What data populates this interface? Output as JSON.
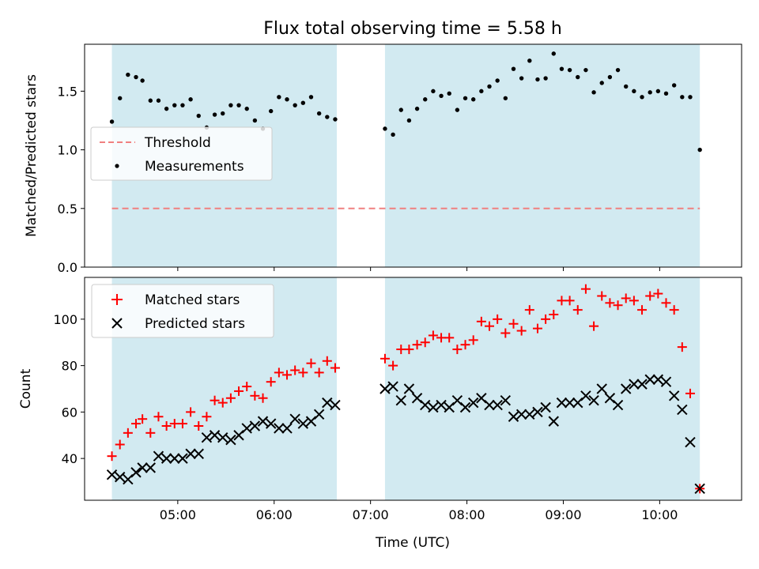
{
  "chart_data": {
    "type": "scatter",
    "title": "Flux total observing time = 5.58 h",
    "xlabel": "Time (UTC)",
    "x_ticks": [
      "05:00",
      "06:00",
      "07:00",
      "08:00",
      "09:00",
      "10:00"
    ],
    "xlim": [
      "04:02",
      "10:51"
    ],
    "shaded_intervals": [
      [
        "04:19",
        "06:39"
      ],
      [
        "07:09",
        "10:25"
      ]
    ],
    "shade_color": "#add8e6",
    "panels": [
      {
        "ylabel": "Matched/Predicted stars",
        "ylim": [
          0,
          1.9
        ],
        "y_ticks": [
          0.0,
          0.5,
          1.0,
          1.5
        ],
        "y_tick_labels": [
          "0.0",
          "0.5",
          "1.0",
          "1.5"
        ],
        "legend_position": "center-left",
        "threshold": {
          "name": "Threshold",
          "y": 0.5,
          "color": "#f08080",
          "style": "dashed"
        },
        "series": [
          {
            "name": "Measurements",
            "marker": "dot",
            "color": "#000000",
            "points": [
              [
                "04:19",
                1.24
              ],
              [
                "04:24",
                1.44
              ],
              [
                "04:29",
                1.64
              ],
              [
                "04:34",
                1.62
              ],
              [
                "04:38",
                1.59
              ],
              [
                "04:43",
                1.42
              ],
              [
                "04:48",
                1.42
              ],
              [
                "04:53",
                1.35
              ],
              [
                "04:58",
                1.38
              ],
              [
                "05:03",
                1.38
              ],
              [
                "05:08",
                1.43
              ],
              [
                "05:13",
                1.29
              ],
              [
                "05:18",
                1.19
              ],
              [
                "05:23",
                1.3
              ],
              [
                "05:28",
                1.31
              ],
              [
                "05:33",
                1.38
              ],
              [
                "05:38",
                1.38
              ],
              [
                "05:43",
                1.35
              ],
              [
                "05:48",
                1.25
              ],
              [
                "05:53",
                1.18
              ],
              [
                "05:58",
                1.33
              ],
              [
                "06:03",
                1.45
              ],
              [
                "06:08",
                1.43
              ],
              [
                "06:13",
                1.38
              ],
              [
                "06:18",
                1.4
              ],
              [
                "06:23",
                1.45
              ],
              [
                "06:28",
                1.31
              ],
              [
                "06:33",
                1.28
              ],
              [
                "06:38",
                1.26
              ],
              [
                "07:09",
                1.18
              ],
              [
                "07:14",
                1.13
              ],
              [
                "07:19",
                1.34
              ],
              [
                "07:24",
                1.25
              ],
              [
                "07:29",
                1.35
              ],
              [
                "07:34",
                1.43
              ],
              [
                "07:39",
                1.5
              ],
              [
                "07:44",
                1.46
              ],
              [
                "07:49",
                1.48
              ],
              [
                "07:54",
                1.34
              ],
              [
                "07:59",
                1.44
              ],
              [
                "08:04",
                1.43
              ],
              [
                "08:09",
                1.5
              ],
              [
                "08:14",
                1.54
              ],
              [
                "08:19",
                1.59
              ],
              [
                "08:24",
                1.44
              ],
              [
                "08:29",
                1.69
              ],
              [
                "08:34",
                1.61
              ],
              [
                "08:39",
                1.76
              ],
              [
                "08:44",
                1.6
              ],
              [
                "08:49",
                1.61
              ],
              [
                "08:54",
                1.82
              ],
              [
                "08:59",
                1.69
              ],
              [
                "09:04",
                1.68
              ],
              [
                "09:09",
                1.62
              ],
              [
                "09:14",
                1.68
              ],
              [
                "09:19",
                1.49
              ],
              [
                "09:24",
                1.57
              ],
              [
                "09:29",
                1.62
              ],
              [
                "09:34",
                1.68
              ],
              [
                "09:39",
                1.54
              ],
              [
                "09:44",
                1.5
              ],
              [
                "09:49",
                1.45
              ],
              [
                "09:54",
                1.49
              ],
              [
                "09:59",
                1.5
              ],
              [
                "10:04",
                1.48
              ],
              [
                "10:09",
                1.55
              ],
              [
                "10:14",
                1.45
              ],
              [
                "10:19",
                1.45
              ],
              [
                "10:25",
                1.0
              ]
            ]
          }
        ]
      },
      {
        "ylabel": "Count",
        "ylim": [
          22,
          118
        ],
        "y_ticks": [
          40,
          60,
          80,
          100
        ],
        "y_tick_labels": [
          "40",
          "60",
          "80",
          "100"
        ],
        "legend_position": "top-left",
        "series": [
          {
            "name": "Matched stars",
            "marker": "plus",
            "color": "#ff0000",
            "points": [
              [
                "04:19",
                41
              ],
              [
                "04:24",
                46
              ],
              [
                "04:29",
                51
              ],
              [
                "04:34",
                55
              ],
              [
                "04:38",
                57
              ],
              [
                "04:43",
                51
              ],
              [
                "04:48",
                58
              ],
              [
                "04:53",
                54
              ],
              [
                "04:58",
                55
              ],
              [
                "05:03",
                55
              ],
              [
                "05:08",
                60
              ],
              [
                "05:13",
                54
              ],
              [
                "05:18",
                58
              ],
              [
                "05:23",
                65
              ],
              [
                "05:28",
                64
              ],
              [
                "05:33",
                66
              ],
              [
                "05:38",
                69
              ],
              [
                "05:43",
                71
              ],
              [
                "05:48",
                67
              ],
              [
                "05:53",
                66
              ],
              [
                "05:58",
                73
              ],
              [
                "06:03",
                77
              ],
              [
                "06:08",
                76
              ],
              [
                "06:13",
                78
              ],
              [
                "06:18",
                77
              ],
              [
                "06:23",
                81
              ],
              [
                "06:28",
                77
              ],
              [
                "06:33",
                82
              ],
              [
                "06:38",
                79
              ],
              [
                "07:09",
                83
              ],
              [
                "07:14",
                80
              ],
              [
                "07:19",
                87
              ],
              [
                "07:24",
                87
              ],
              [
                "07:29",
                89
              ],
              [
                "07:34",
                90
              ],
              [
                "07:39",
                93
              ],
              [
                "07:44",
                92
              ],
              [
                "07:49",
                92
              ],
              [
                "07:54",
                87
              ],
              [
                "07:59",
                89
              ],
              [
                "08:04",
                91
              ],
              [
                "08:09",
                99
              ],
              [
                "08:14",
                97
              ],
              [
                "08:19",
                100
              ],
              [
                "08:24",
                94
              ],
              [
                "08:29",
                98
              ],
              [
                "08:34",
                95
              ],
              [
                "08:39",
                104
              ],
              [
                "08:44",
                96
              ],
              [
                "08:49",
                100
              ],
              [
                "08:54",
                102
              ],
              [
                "08:59",
                108
              ],
              [
                "09:04",
                108
              ],
              [
                "09:09",
                104
              ],
              [
                "09:14",
                113
              ],
              [
                "09:19",
                97
              ],
              [
                "09:24",
                110
              ],
              [
                "09:29",
                107
              ],
              [
                "09:34",
                106
              ],
              [
                "09:39",
                109
              ],
              [
                "09:44",
                108
              ],
              [
                "09:49",
                104
              ],
              [
                "09:54",
                110
              ],
              [
                "09:59",
                111
              ],
              [
                "10:04",
                107
              ],
              [
                "10:09",
                104
              ],
              [
                "10:14",
                88
              ],
              [
                "10:19",
                68
              ],
              [
                "10:25",
                27
              ]
            ]
          },
          {
            "name": "Predicted stars",
            "marker": "x",
            "color": "#000000",
            "points": [
              [
                "04:19",
                33
              ],
              [
                "04:24",
                32
              ],
              [
                "04:29",
                31
              ],
              [
                "04:34",
                34
              ],
              [
                "04:38",
                36
              ],
              [
                "04:43",
                36
              ],
              [
                "04:48",
                41
              ],
              [
                "04:53",
                40
              ],
              [
                "04:58",
                40
              ],
              [
                "05:03",
                40
              ],
              [
                "05:08",
                42
              ],
              [
                "05:13",
                42
              ],
              [
                "05:18",
                49
              ],
              [
                "05:23",
                50
              ],
              [
                "05:28",
                49
              ],
              [
                "05:33",
                48
              ],
              [
                "05:38",
                50
              ],
              [
                "05:43",
                53
              ],
              [
                "05:48",
                54
              ],
              [
                "05:53",
                56
              ],
              [
                "05:58",
                55
              ],
              [
                "06:03",
                53
              ],
              [
                "06:08",
                53
              ],
              [
                "06:13",
                57
              ],
              [
                "06:18",
                55
              ],
              [
                "06:23",
                56
              ],
              [
                "06:28",
                59
              ],
              [
                "06:33",
                64
              ],
              [
                "06:38",
                63
              ],
              [
                "07:09",
                70
              ],
              [
                "07:14",
                71
              ],
              [
                "07:19",
                65
              ],
              [
                "07:24",
                70
              ],
              [
                "07:29",
                66
              ],
              [
                "07:34",
                63
              ],
              [
                "07:39",
                62
              ],
              [
                "07:44",
                63
              ],
              [
                "07:49",
                62
              ],
              [
                "07:54",
                65
              ],
              [
                "07:59",
                62
              ],
              [
                "08:04",
                64
              ],
              [
                "08:09",
                66
              ],
              [
                "08:14",
                63
              ],
              [
                "08:19",
                63
              ],
              [
                "08:24",
                65
              ],
              [
                "08:29",
                58
              ],
              [
                "08:34",
                59
              ],
              [
                "08:39",
                59
              ],
              [
                "08:44",
                60
              ],
              [
                "08:49",
                62
              ],
              [
                "08:54",
                56
              ],
              [
                "08:59",
                64
              ],
              [
                "09:04",
                64
              ],
              [
                "09:09",
                64
              ],
              [
                "09:14",
                67
              ],
              [
                "09:19",
                65
              ],
              [
                "09:24",
                70
              ],
              [
                "09:29",
                66
              ],
              [
                "09:34",
                63
              ],
              [
                "09:39",
                70
              ],
              [
                "09:44",
                72
              ],
              [
                "09:49",
                72
              ],
              [
                "09:54",
                74
              ],
              [
                "09:59",
                74
              ],
              [
                "10:04",
                73
              ],
              [
                "10:09",
                67
              ],
              [
                "10:14",
                61
              ],
              [
                "10:19",
                47
              ],
              [
                "10:25",
                27
              ]
            ]
          }
        ]
      }
    ]
  }
}
